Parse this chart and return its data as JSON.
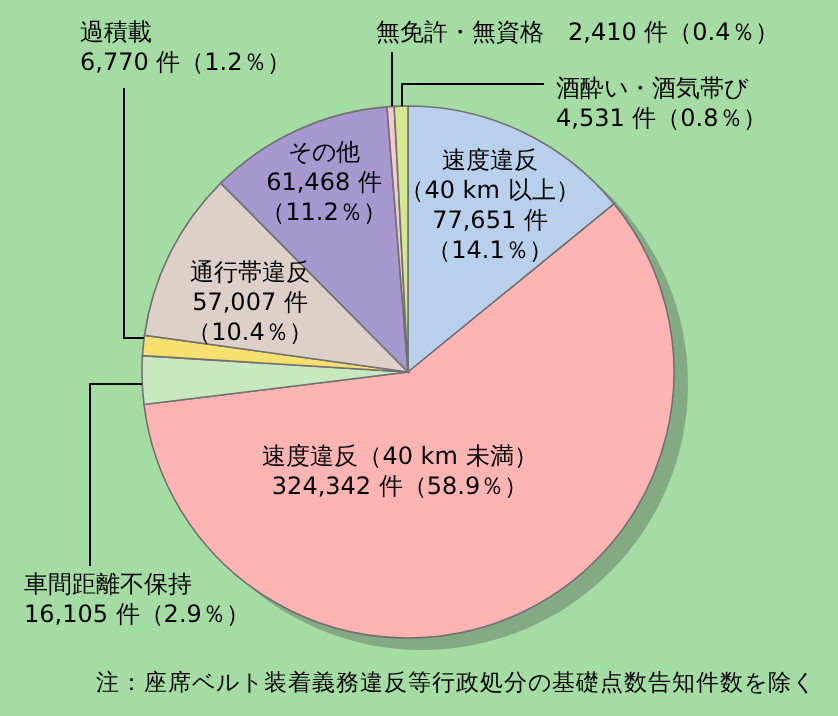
{
  "chart_data": {
    "type": "pie",
    "categories": [
      "速度違反（40 km 以上）",
      "速度違反（40 km 未満）",
      "車間距離不保持",
      "過積載",
      "通行帯違反",
      "その他",
      "無免許・無資格",
      "酒酔い・酒気帯び"
    ],
    "values": [
      77651,
      324342,
      16105,
      6770,
      57007,
      61468,
      2410,
      4531
    ],
    "value_labels": [
      "77,651 件（14.1％）",
      "324,342 件（58.9％）",
      "16,105 件（2.9％）",
      "6,770 件（1.2％）",
      "57,007 件（10.4％）",
      "61,468 件（11.2％）",
      "2,410 件（0.4％）",
      "4,531 件（0.8％）"
    ],
    "colors": [
      "#b8d0ec",
      "#ffb4b4",
      "#c8e8c0",
      "#f8e070",
      "#dcd0c8",
      "#a898d0",
      "#f4c8d0",
      "#d4e890"
    ],
    "annotations": [
      "注：座席ベルト装着義務違反等行政処分の基礎点数告知件数を除く"
    ]
  }
}
